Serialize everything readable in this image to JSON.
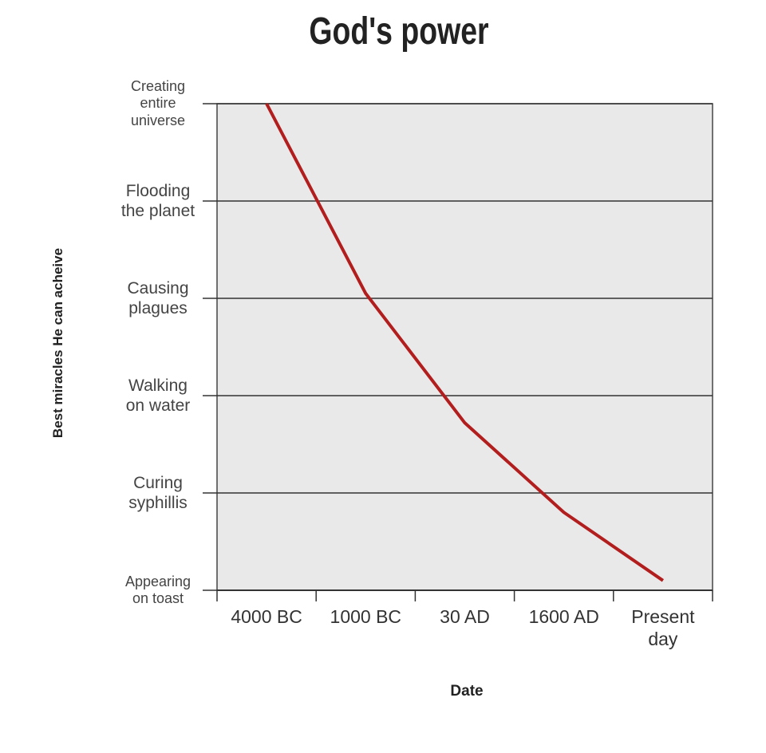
{
  "chart_data": {
    "type": "line",
    "title": "God's power",
    "xlabel": "Date",
    "ylabel": "Best miracles He can acheive",
    "categories": [
      "4000 BC",
      "1000 BC",
      "30 AD",
      "1600 AD",
      "Present day"
    ],
    "values": [
      5,
      3.05,
      1.72,
      0.8,
      0.1
    ],
    "color": "#b21e1e",
    "ylim": [
      0,
      5
    ],
    "yticks": [
      {
        "value": 0,
        "label": "Appearing on toast"
      },
      {
        "value": 1,
        "label": "Curing syphillis"
      },
      {
        "value": 2,
        "label": "Walking on water"
      },
      {
        "value": 3,
        "label": "Causing plagues"
      },
      {
        "value": 4,
        "label": "Flooding the planet"
      },
      {
        "value": 5,
        "label": "Creating entire universe"
      }
    ],
    "grid": true
  }
}
